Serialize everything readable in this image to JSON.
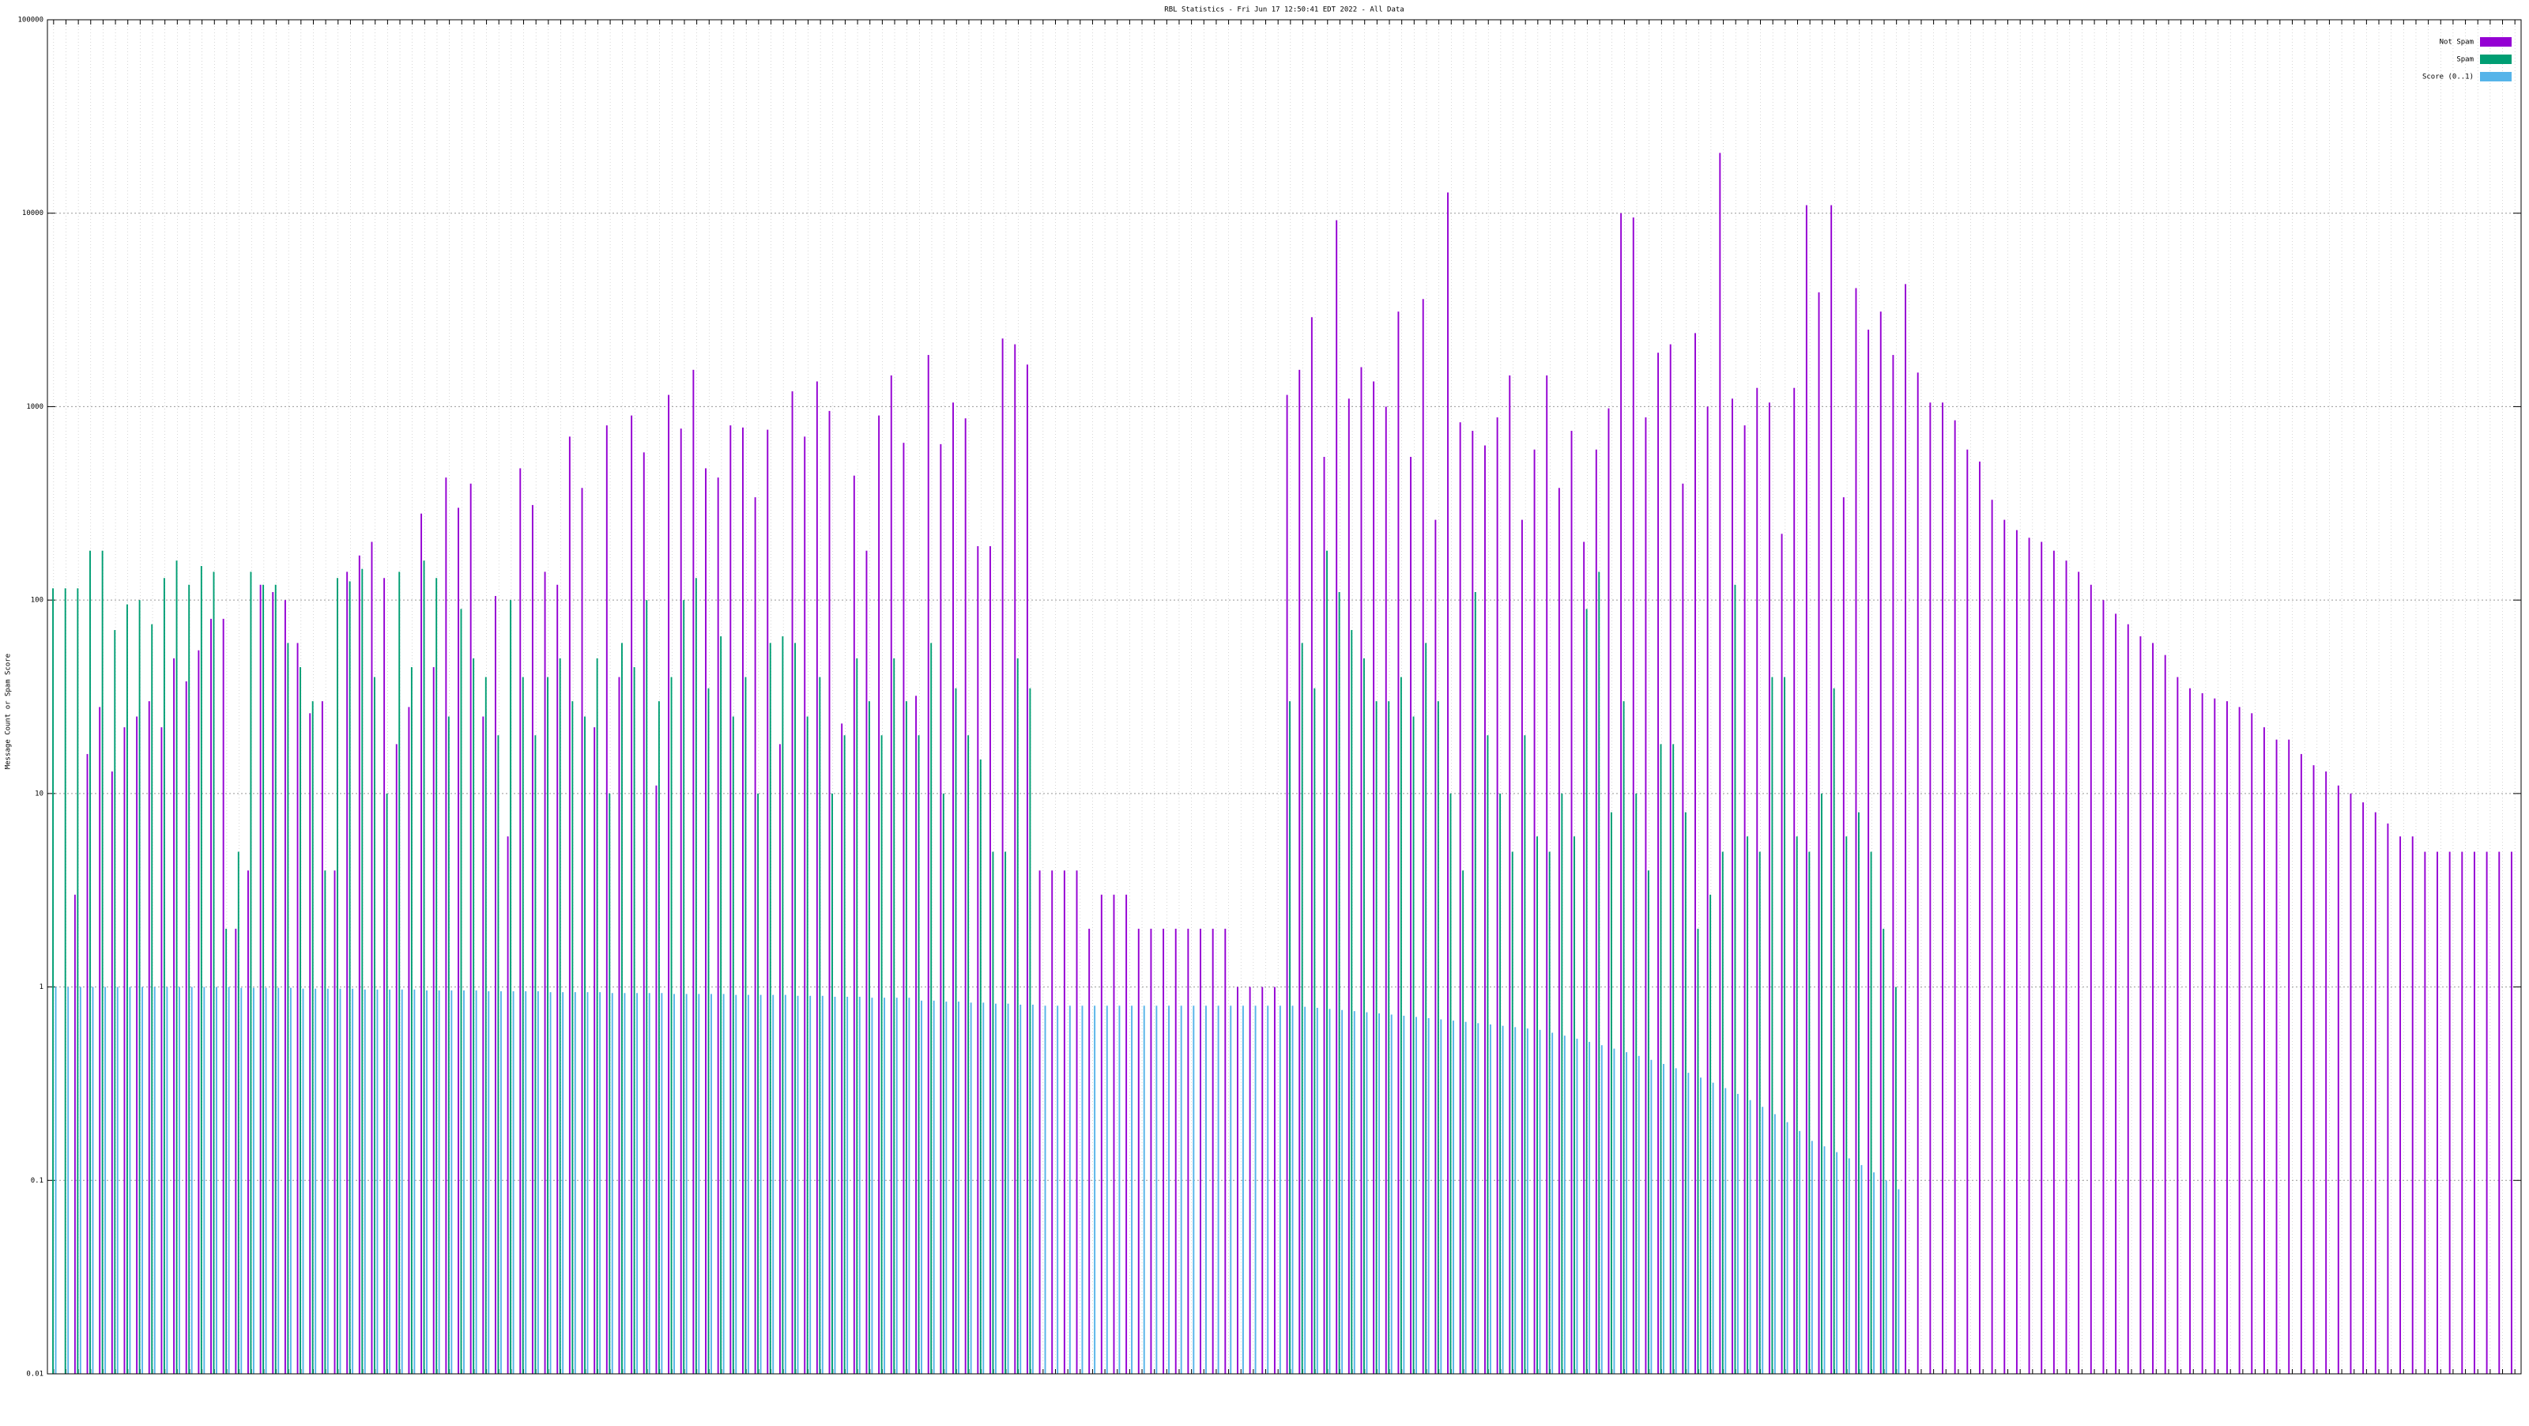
{
  "chart_data": {
    "type": "bar",
    "title": "RBL Statistics - Fri Jun 17 12:50:41 EDT 2022 - All Data",
    "y_label": "Message Count or Spam Score",
    "log_scale": true,
    "grid": true,
    "legend": "top-right",
    "ylim": [
      0.01,
      100000
    ],
    "yticks": [
      0.01,
      0.1,
      1,
      10,
      100,
      1000,
      10000,
      100000
    ],
    "categories": [
      null,
      null,
      null,
      null,
      null,
      null,
      null,
      null,
      null,
      null,
      null,
      null,
      null,
      null,
      null,
      null,
      null,
      null,
      null,
      null,
      null,
      null,
      null,
      null,
      null,
      null,
      null,
      null,
      null,
      null,
      null,
      null,
      null,
      null,
      null,
      null,
      null,
      null,
      null,
      null,
      null,
      null,
      null,
      null,
      null,
      null,
      null,
      null,
      null,
      null,
      null,
      null,
      null,
      null,
      null,
      null,
      null,
      null,
      null,
      null,
      null,
      null,
      null,
      null,
      null,
      null,
      null,
      null,
      null,
      null,
      null,
      null,
      null,
      null,
      null,
      null,
      null,
      null,
      null,
      null,
      null,
      null,
      null,
      null,
      null,
      null,
      null,
      null,
      null,
      null,
      null,
      null,
      null,
      null,
      null,
      null,
      null,
      null,
      null,
      null,
      null,
      null,
      null,
      null,
      null,
      null,
      null,
      null,
      null,
      null,
      null,
      null,
      null,
      null,
      null,
      null,
      null,
      null,
      null,
      null,
      null,
      null,
      null,
      null,
      null,
      null,
      null,
      null,
      null,
      null,
      null,
      null,
      null,
      null,
      null,
      null,
      null,
      null,
      null,
      null,
      null,
      null,
      null,
      null,
      null,
      null,
      null,
      null,
      null,
      null,
      null,
      null,
      null,
      null,
      null,
      null,
      null,
      null,
      null,
      null,
      null,
      null,
      null,
      null,
      null,
      null,
      null,
      null,
      null,
      null,
      null,
      null,
      null,
      null,
      null,
      null,
      null,
      null,
      null,
      null,
      null,
      null,
      null,
      null,
      null,
      null,
      null,
      null,
      null,
      null,
      null,
      null,
      null,
      null,
      null,
      null,
      null,
      null,
      null,
      null
    ],
    "series": [
      {
        "name": "Not Spam",
        "color": "#9400d3",
        "values": [
          null,
          null,
          3,
          16,
          28,
          13,
          22,
          25,
          30,
          22,
          50,
          38,
          55,
          80,
          80,
          2,
          4,
          120,
          110,
          100,
          60,
          26,
          30,
          4,
          140,
          170,
          200,
          130,
          18,
          28,
          280,
          45,
          430,
          300,
          400,
          25,
          105,
          6,
          480,
          310,
          140,
          120,
          700,
          380,
          22,
          800,
          40,
          900,
          580,
          11,
          1150,
          770,
          1550,
          480,
          430,
          800,
          780,
          340,
          760,
          18,
          1200,
          700,
          1350,
          950,
          23,
          440,
          180,
          900,
          1450,
          650,
          32,
          1850,
          640,
          1050,
          870,
          190,
          190,
          2250,
          2100,
          1650,
          4,
          4,
          4,
          4,
          2,
          3,
          3,
          3,
          2,
          2,
          2,
          2,
          2,
          2,
          2,
          2,
          1,
          1,
          1,
          1,
          1150,
          1550,
          2900,
          550,
          9200,
          1100,
          1600,
          1350,
          1000,
          3100,
          550,
          3600,
          260,
          12800,
          830,
          750,
          630,
          880,
          1450,
          260,
          600,
          1450,
          380,
          750,
          200,
          600,
          980,
          10000,
          9500,
          880,
          1900,
          2100,
          400,
          2400,
          1000,
          20500,
          1100,
          800,
          1250,
          1050,
          220,
          1250,
          11000,
          3900,
          11000,
          340,
          4100,
          2500,
          3100,
          1850,
          4300,
          1500,
          1050,
          1050,
          850,
          600,
          520,
          330,
          260,
          230,
          210,
          200,
          180,
          160,
          140,
          120,
          100,
          85,
          75,
          65,
          60,
          52,
          40,
          35,
          33,
          31,
          30,
          28,
          26,
          22,
          19,
          19,
          16,
          14,
          13,
          11,
          10,
          9,
          8,
          7,
          6,
          6,
          5,
          5,
          5,
          5,
          5,
          5,
          5,
          5
        ]
      },
      {
        "name": "Spam",
        "color": "#009e73",
        "values": [
          115,
          115,
          115,
          180,
          180,
          70,
          95,
          100,
          75,
          130,
          160,
          120,
          150,
          140,
          2,
          5,
          140,
          120,
          120,
          60,
          45,
          30,
          4,
          130,
          125,
          145,
          40,
          10,
          140,
          45,
          160,
          130,
          25,
          90,
          50,
          40,
          20,
          100,
          40,
          20,
          40,
          50,
          30,
          25,
          50,
          10,
          60,
          45,
          100,
          30,
          40,
          100,
          130,
          35,
          65,
          25,
          40,
          10,
          60,
          65,
          60,
          25,
          40,
          10,
          20,
          50,
          30,
          20,
          50,
          30,
          20,
          60,
          10,
          35,
          20,
          15,
          5,
          5,
          50,
          35,
          null,
          null,
          null,
          null,
          null,
          null,
          null,
          null,
          null,
          null,
          null,
          null,
          null,
          null,
          null,
          null,
          null,
          null,
          null,
          null,
          30,
          60,
          35,
          180,
          110,
          70,
          50,
          30,
          30,
          40,
          25,
          60,
          30,
          10,
          4,
          110,
          20,
          10,
          5,
          20,
          6,
          5,
          10,
          6,
          90,
          140,
          8,
          30,
          10,
          4,
          18,
          18,
          8,
          2,
          3,
          5,
          120,
          6,
          5,
          40,
          40,
          6,
          5,
          10,
          35,
          6,
          8,
          5,
          2,
          1,
          null,
          null,
          null,
          null,
          null,
          null,
          null,
          null,
          null,
          null,
          null,
          null,
          null,
          null,
          null,
          null,
          null,
          null,
          null,
          null,
          null,
          null,
          null,
          null,
          null,
          null,
          null,
          null,
          null,
          null,
          null,
          null,
          null,
          null,
          null,
          null,
          null,
          null,
          null,
          null,
          null,
          null,
          null,
          null,
          null,
          null,
          null,
          null,
          null,
          null
        ]
      },
      {
        "name": "Score (0..1)",
        "color": "#56b4e9",
        "values": [
          1,
          1,
          1,
          1,
          1,
          1,
          1,
          1,
          1,
          1,
          1,
          1,
          1,
          1,
          1,
          0.99,
          0.99,
          0.99,
          0.99,
          0.99,
          0.98,
          0.98,
          0.98,
          0.98,
          0.98,
          0.97,
          0.97,
          0.97,
          0.97,
          0.97,
          0.96,
          0.96,
          0.96,
          0.96,
          0.96,
          0.95,
          0.95,
          0.95,
          0.95,
          0.95,
          0.94,
          0.94,
          0.94,
          0.94,
          0.94,
          0.93,
          0.93,
          0.93,
          0.93,
          0.93,
          0.92,
          0.92,
          0.92,
          0.92,
          0.92,
          0.91,
          0.91,
          0.91,
          0.91,
          0.91,
          0.9,
          0.9,
          0.9,
          0.89,
          0.89,
          0.89,
          0.88,
          0.88,
          0.88,
          0.88,
          0.85,
          0.85,
          0.84,
          0.84,
          0.83,
          0.83,
          0.82,
          0.82,
          0.81,
          0.81,
          0.8,
          0.8,
          0.8,
          0.8,
          0.8,
          0.8,
          0.8,
          0.8,
          0.8,
          0.8,
          0.8,
          0.8,
          0.8,
          0.8,
          0.8,
          0.8,
          0.8,
          0.8,
          0.8,
          0.8,
          0.8,
          0.79,
          0.78,
          0.77,
          0.76,
          0.75,
          0.74,
          0.73,
          0.72,
          0.71,
          0.7,
          0.69,
          0.68,
          0.67,
          0.66,
          0.65,
          0.64,
          0.63,
          0.62,
          0.61,
          0.6,
          0.58,
          0.56,
          0.54,
          0.52,
          0.5,
          0.48,
          0.46,
          0.44,
          0.42,
          0.4,
          0.38,
          0.36,
          0.34,
          0.32,
          0.3,
          0.28,
          0.26,
          0.24,
          0.22,
          0.2,
          0.18,
          0.16,
          0.15,
          0.14,
          0.13,
          0.12,
          0.11,
          0.1,
          0.09,
          null,
          null,
          null,
          null,
          null,
          null,
          null,
          null,
          null,
          null,
          null,
          null,
          null,
          null,
          null,
          null,
          null,
          null,
          null,
          null,
          null,
          null,
          null,
          null,
          null,
          null,
          null,
          null,
          null,
          null,
          null,
          null,
          null,
          null,
          null,
          null,
          null,
          null,
          null,
          null,
          null,
          null,
          null,
          null,
          null,
          null,
          null,
          null,
          null,
          null
        ]
      }
    ]
  }
}
